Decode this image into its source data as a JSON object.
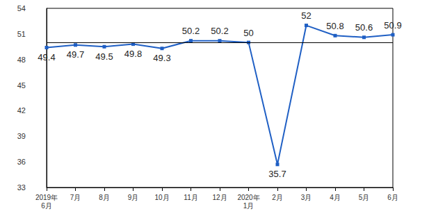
{
  "chart_data": {
    "type": "line",
    "categories": [
      "2019年\n6月",
      "7月",
      "8月",
      "9月",
      "10月",
      "11月",
      "12月",
      "2020年\n1月",
      "2月",
      "3月",
      "4月",
      "5月",
      "6月"
    ],
    "values": [
      49.4,
      49.7,
      49.5,
      49.8,
      49.3,
      50.2,
      50.2,
      50.0,
      35.7,
      52.0,
      50.8,
      50.6,
      50.9
    ],
    "color": "#1f5fc4",
    "ylim": [
      33,
      54
    ],
    "yticks": [
      33,
      36,
      39,
      42,
      45,
      48,
      51,
      54
    ],
    "reference_line": 50,
    "grid": false,
    "data_labels": true,
    "marker": "square",
    "line_style": "solid"
  }
}
